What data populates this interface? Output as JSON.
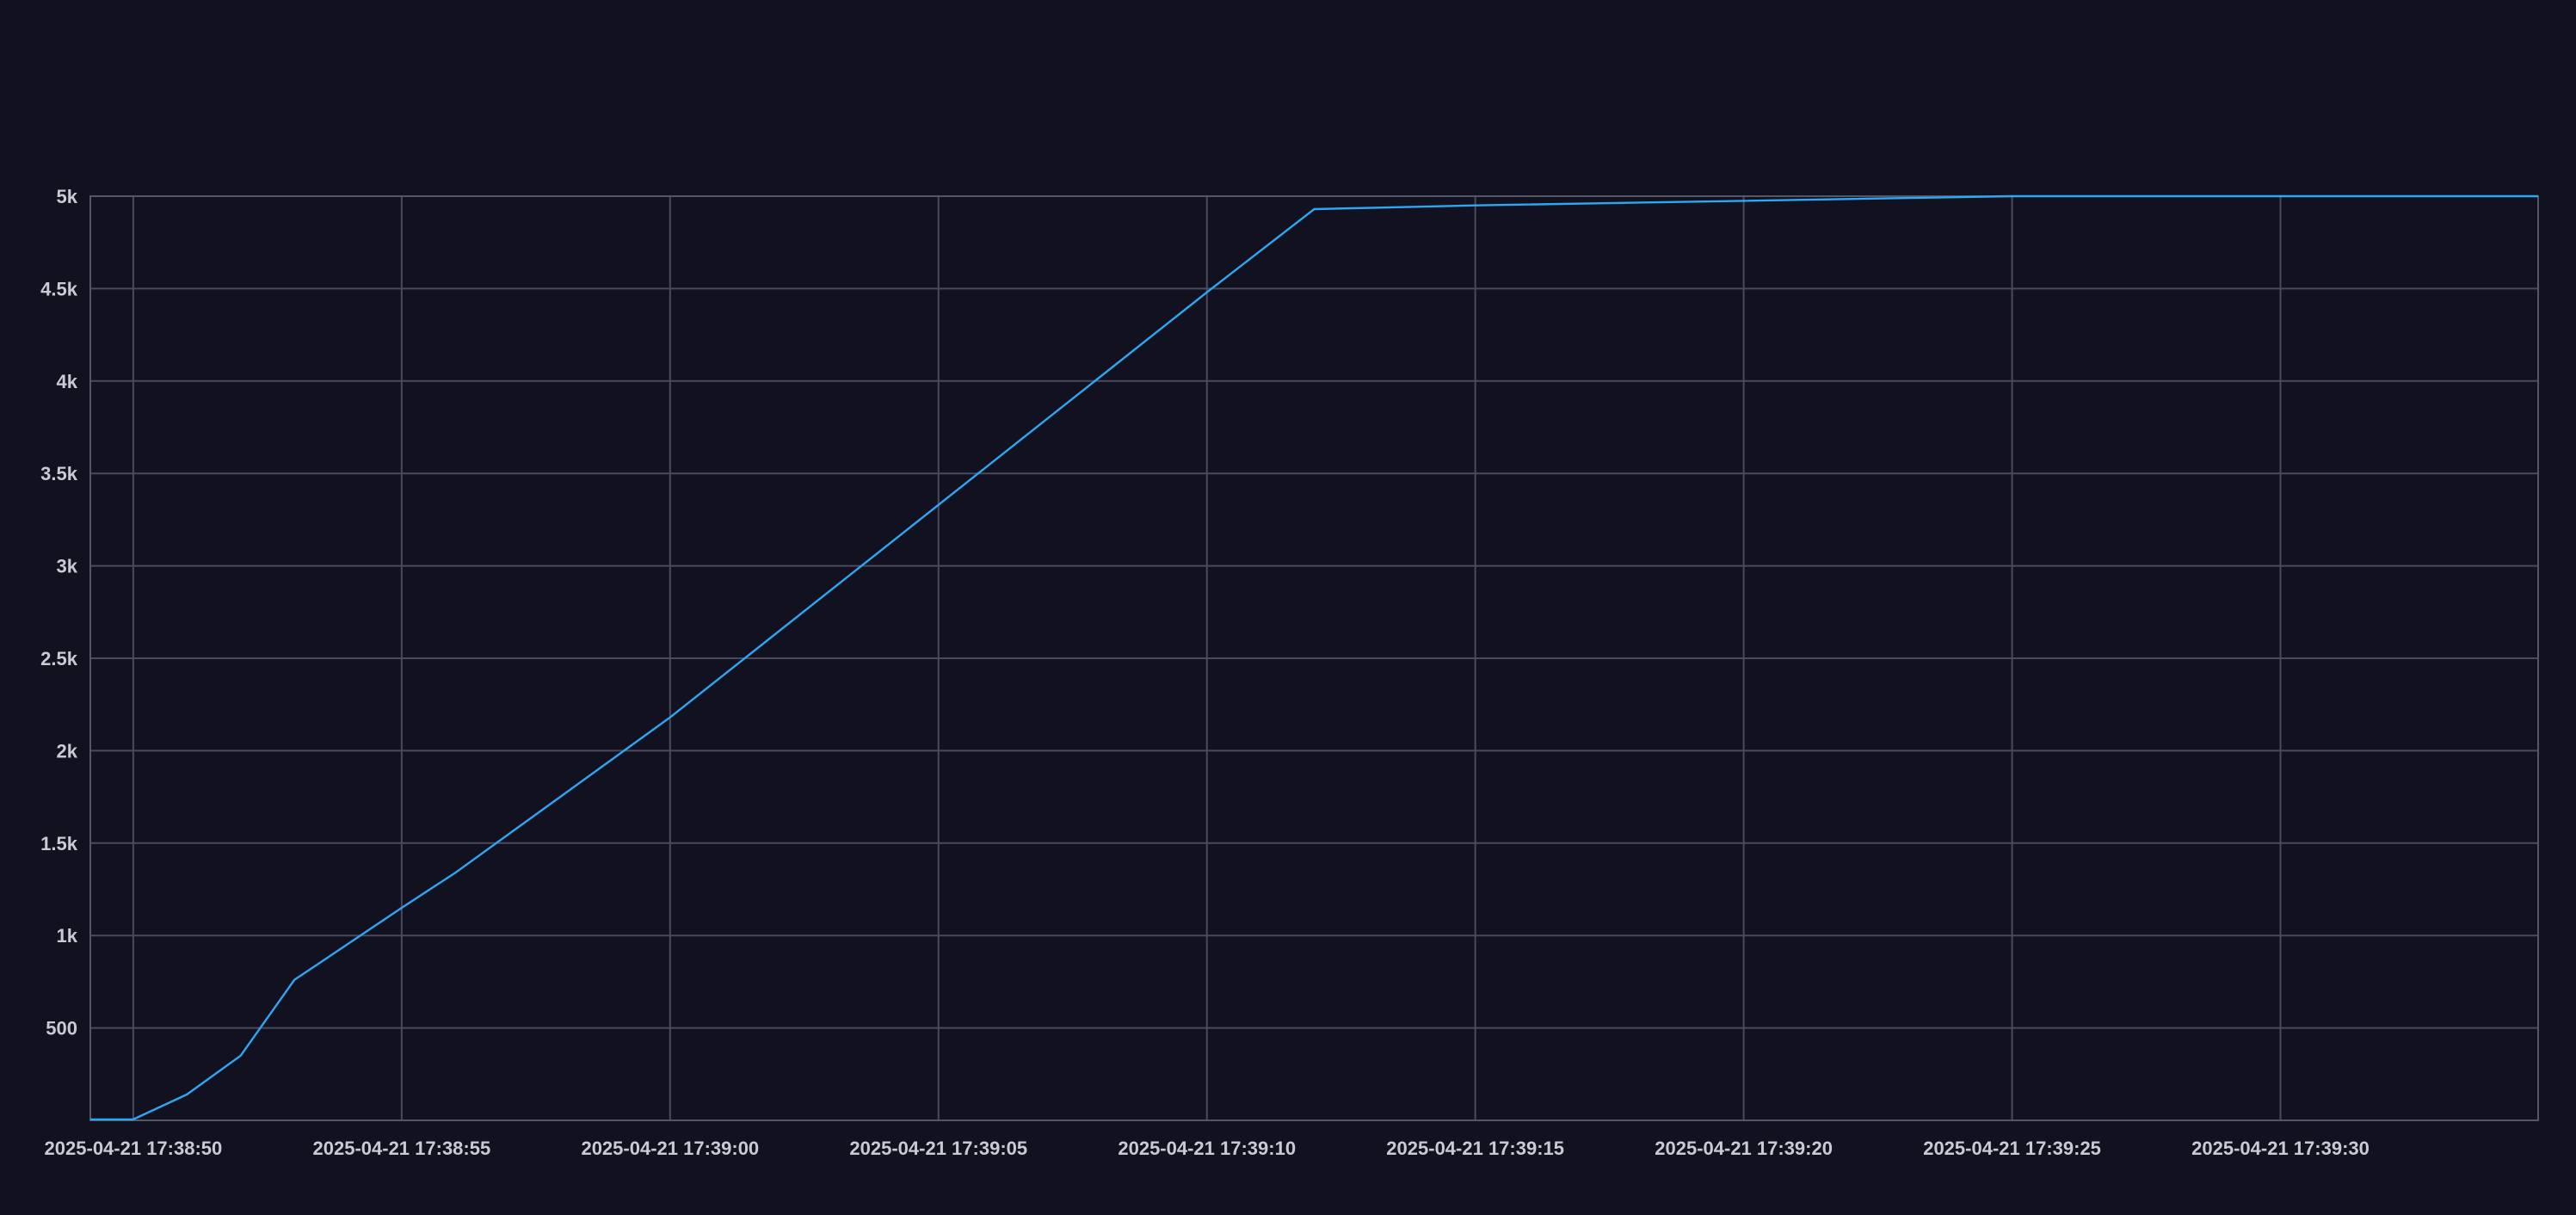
{
  "colors": {
    "background": "#11111f",
    "series": "#2fa6f2",
    "grid": "#4a4a5e"
  },
  "chart_data": {
    "type": "line",
    "title": "",
    "xlabel": "",
    "ylabel": "",
    "x_axis": "time",
    "xlim": [
      "2025-04-21 17:38:49.2",
      "2025-04-21 17:39:34.8"
    ],
    "ylim": [
      0,
      5000
    ],
    "grid": true,
    "legend": "none",
    "x_ticks": [
      {
        "t": "2025-04-21 17:38:50",
        "label": "2025-04-21 17:38:50"
      },
      {
        "t": "2025-04-21 17:38:55",
        "label": "2025-04-21 17:38:55"
      },
      {
        "t": "2025-04-21 17:39:00",
        "label": "2025-04-21 17:39:00"
      },
      {
        "t": "2025-04-21 17:39:05",
        "label": "2025-04-21 17:39:05"
      },
      {
        "t": "2025-04-21 17:39:10",
        "label": "2025-04-21 17:39:10"
      },
      {
        "t": "2025-04-21 17:39:15",
        "label": "2025-04-21 17:39:15"
      },
      {
        "t": "2025-04-21 17:39:20",
        "label": "2025-04-21 17:39:20"
      },
      {
        "t": "2025-04-21 17:39:25",
        "label": "2025-04-21 17:39:25"
      },
      {
        "t": "2025-04-21 17:39:30",
        "label": "2025-04-21 17:39:30"
      }
    ],
    "y_ticks": [
      {
        "value": 500,
        "label": "500"
      },
      {
        "value": 1000,
        "label": "1k"
      },
      {
        "value": 1500,
        "label": "1.5k"
      },
      {
        "value": 2000,
        "label": "2k"
      },
      {
        "value": 2500,
        "label": "2.5k"
      },
      {
        "value": 3000,
        "label": "3k"
      },
      {
        "value": 3500,
        "label": "3.5k"
      },
      {
        "value": 4000,
        "label": "4k"
      },
      {
        "value": 4500,
        "label": "4.5k"
      },
      {
        "value": 5000,
        "label": "5k"
      }
    ],
    "series": [
      {
        "color": "#2fa6f2",
        "points": [
          {
            "t": "2025-04-21 17:38:49.2",
            "y": 5
          },
          {
            "t": "2025-04-21 17:38:50",
            "y": 5
          },
          {
            "t": "2025-04-21 17:38:51",
            "y": 140
          },
          {
            "t": "2025-04-21 17:38:52",
            "y": 350
          },
          {
            "t": "2025-04-21 17:38:53",
            "y": 760
          },
          {
            "t": "2025-04-21 17:38:55",
            "y": 1150
          },
          {
            "t": "2025-04-21 17:38:56",
            "y": 1340
          },
          {
            "t": "2025-04-21 17:39:00",
            "y": 2180
          },
          {
            "t": "2025-04-21 17:39:05",
            "y": 3330
          },
          {
            "t": "2025-04-21 17:39:10",
            "y": 4480
          },
          {
            "t": "2025-04-21 17:39:12",
            "y": 4930
          },
          {
            "t": "2025-04-21 17:39:15",
            "y": 4950
          },
          {
            "t": "2025-04-21 17:39:20",
            "y": 4975
          },
          {
            "t": "2025-04-21 17:39:25",
            "y": 5000
          },
          {
            "t": "2025-04-21 17:39:30",
            "y": 5000
          },
          {
            "t": "2025-04-21 17:39:34.8",
            "y": 5000
          }
        ]
      }
    ]
  }
}
